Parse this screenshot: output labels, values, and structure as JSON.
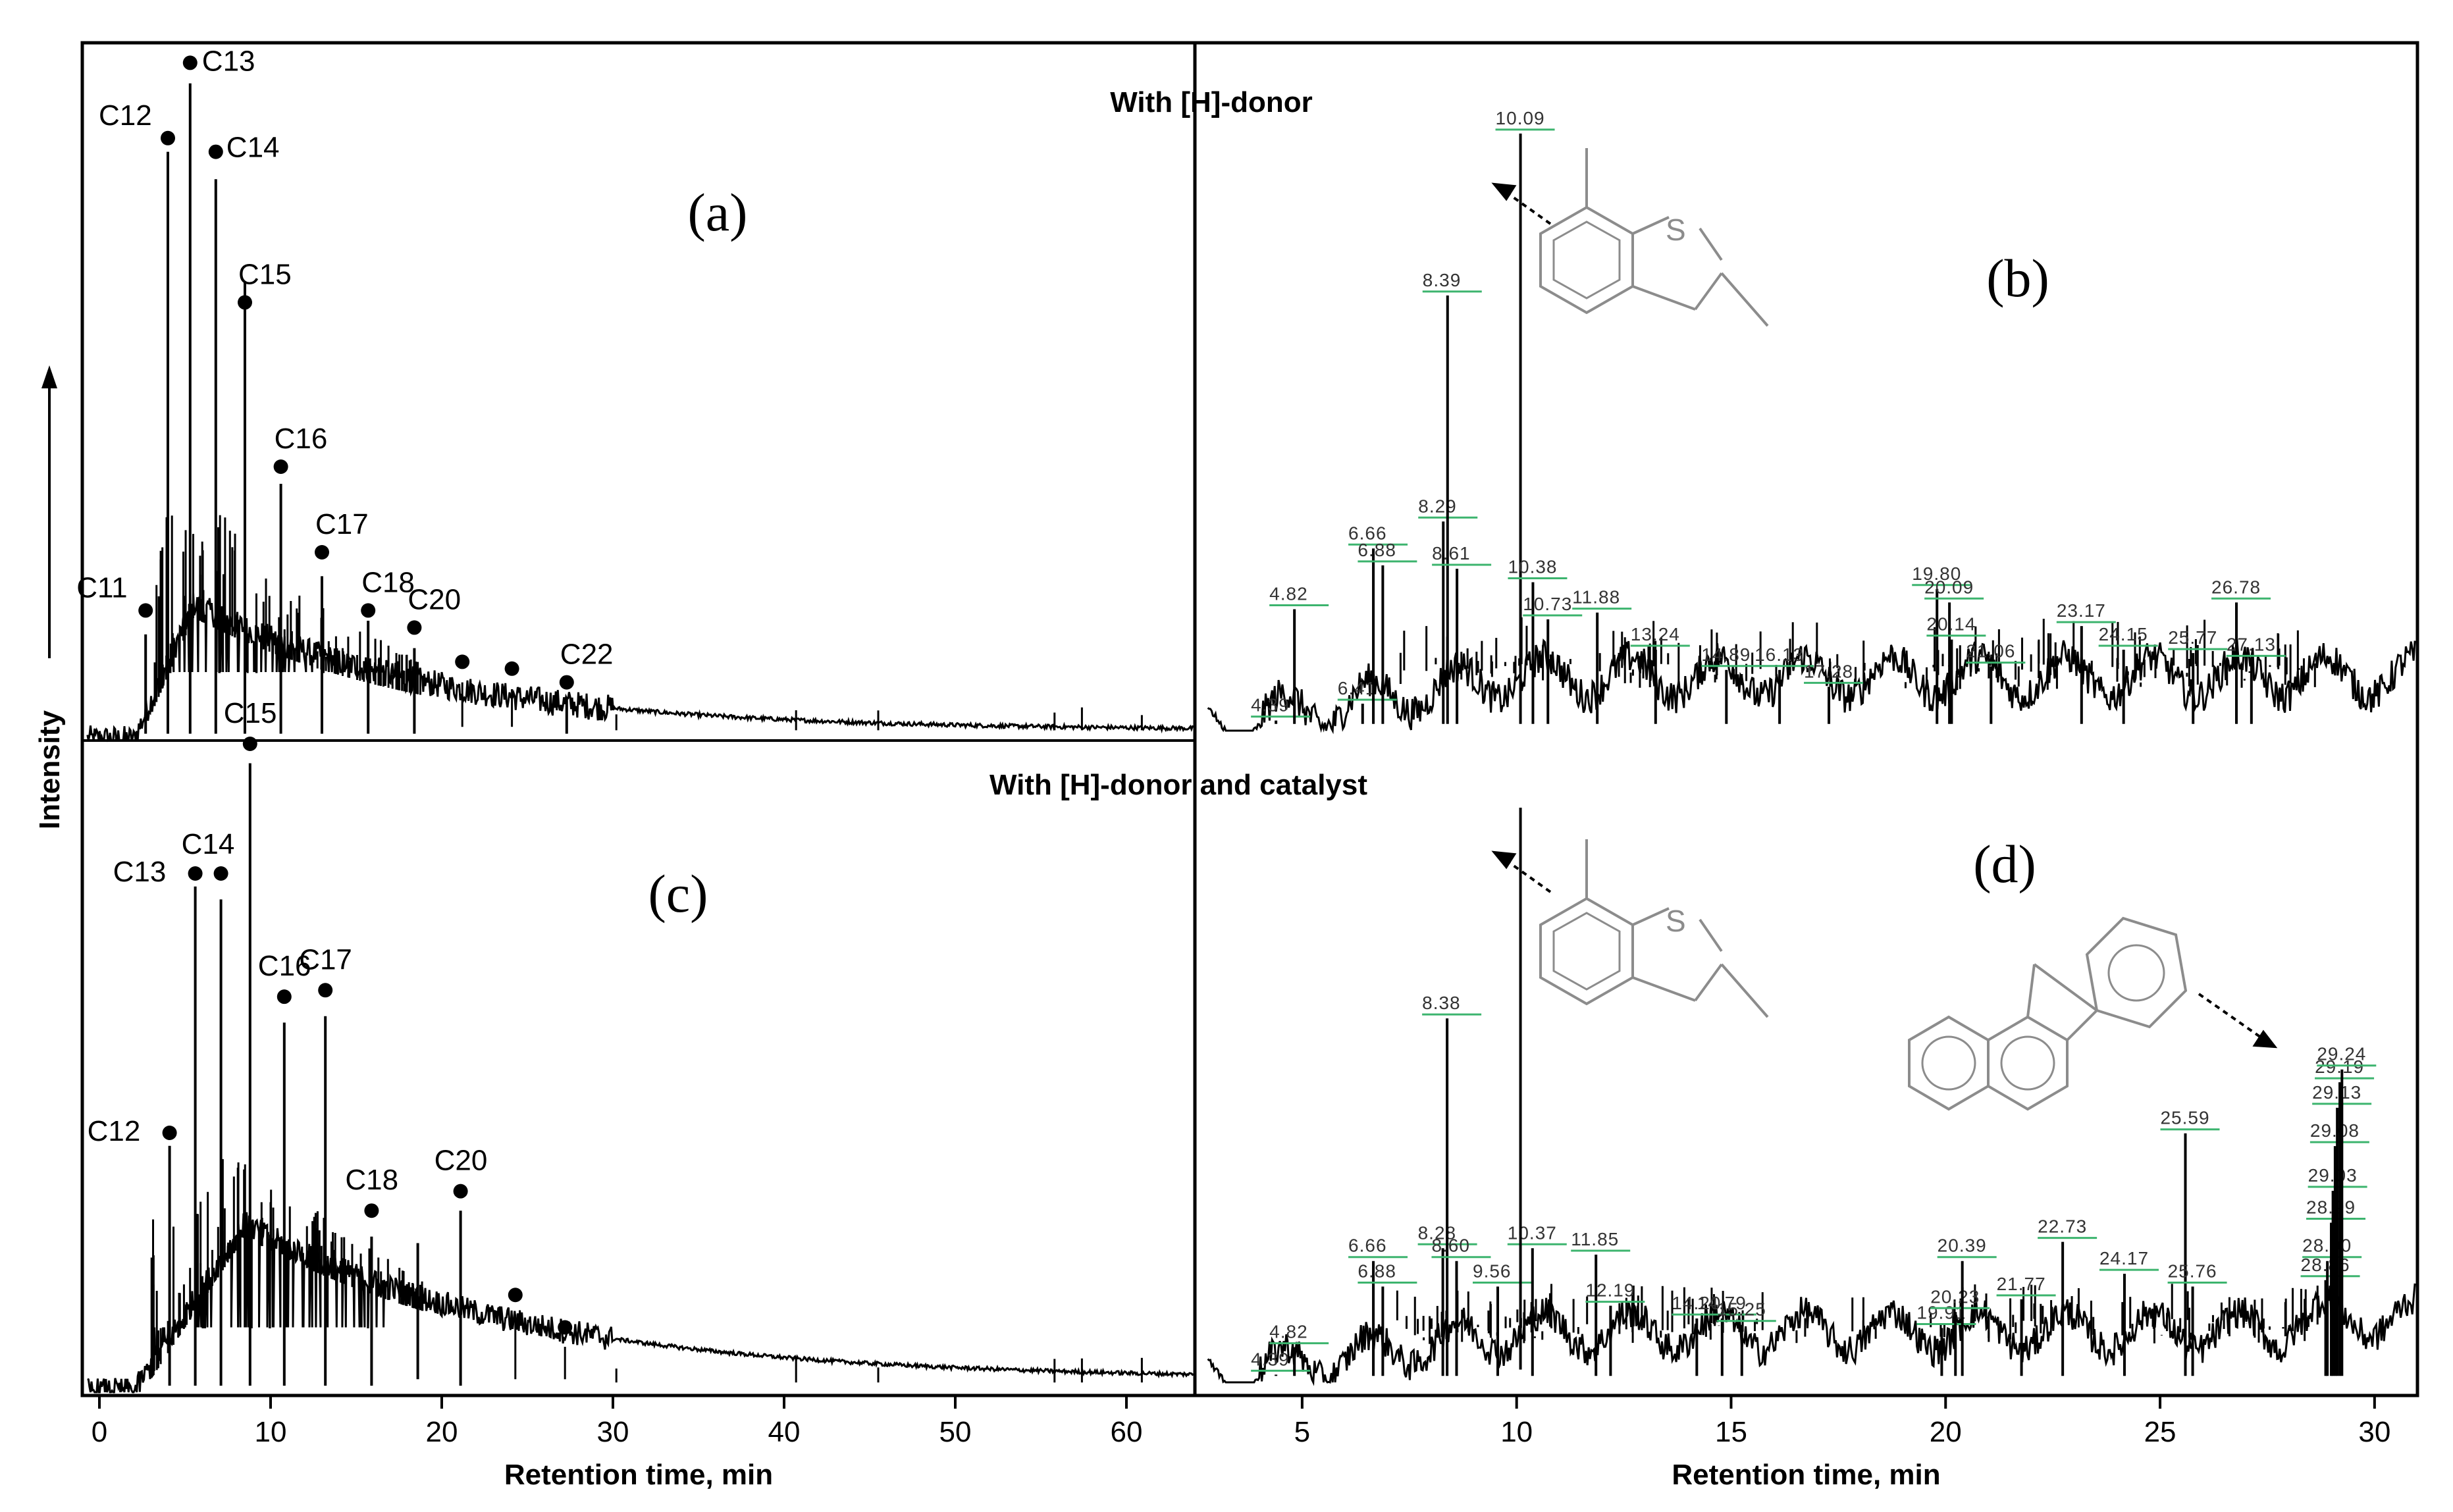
{
  "figure": {
    "condition_top": "With [H]-donor",
    "condition_bottom": "With [H]-donor and catalyst",
    "y_axis_title": "Intensity"
  },
  "chart_data": [
    {
      "id": "a",
      "type": "line",
      "panel_label": "(a)",
      "xlabel": "",
      "ylabel": "Intensity",
      "xlim": [
        0,
        64
      ],
      "x_ticks": [],
      "baseline_hump": {
        "rise_start": 2,
        "peak_x": 5.5,
        "peak_level": 0.2,
        "decay": 14,
        "floor": 0.015
      },
      "peaks": [
        {
          "label": "C11",
          "x": 2.7,
          "h": 0.155,
          "marker": 0.19
        },
        {
          "label": "C12",
          "x": 4.0,
          "h": 0.86,
          "marker": 0.88
        },
        {
          "label": "C13",
          "x": 5.3,
          "h": 0.96,
          "marker": 0.99
        },
        {
          "label": "C14",
          "x": 6.8,
          "h": 0.82,
          "marker": 0.86
        },
        {
          "label": "C15",
          "x": 8.5,
          "h": 0.67,
          "marker": 0.64
        },
        {
          "label": "C16",
          "x": 10.6,
          "h": 0.375,
          "marker": 0.4
        },
        {
          "label": "C17",
          "x": 13.0,
          "h": 0.24,
          "marker": 0.275
        },
        {
          "label": "C18",
          "x": 15.7,
          "h": 0.175,
          "marker": 0.19
        },
        {
          "label": "C20",
          "x": 18.4,
          "h": 0.135,
          "marker": 0.165
        },
        {
          "label": "C22",
          "x": 27.3,
          "h": 0.06,
          "marker": 0.085
        }
      ],
      "unlabeled_markers": [
        {
          "x": 21.2,
          "marker": 0.115
        },
        {
          "x": 24.1,
          "marker": 0.105
        }
      ]
    },
    {
      "id": "b",
      "type": "line",
      "panel_label": "(b)",
      "xlabel": "",
      "ylabel": "",
      "xlim": [
        2.5,
        31
      ],
      "x_ticks": [],
      "peaks": [
        {
          "label": "4.39",
          "x": 4.39,
          "h": 0.015
        },
        {
          "label": "4.82",
          "x": 4.82,
          "h": 0.18
        },
        {
          "label": "6.41",
          "x": 6.41,
          "h": 0.04
        },
        {
          "label": "6.66",
          "x": 6.66,
          "h": 0.27
        },
        {
          "label": "6.88",
          "x": 6.88,
          "h": 0.245
        },
        {
          "label": "8.29",
          "x": 8.29,
          "h": 0.31
        },
        {
          "label": "8.39",
          "x": 8.39,
          "h": 0.645
        },
        {
          "label": "8.61",
          "x": 8.61,
          "h": 0.24
        },
        {
          "label": "10.09",
          "x": 10.09,
          "h": 0.885
        },
        {
          "label": "10.38",
          "x": 10.38,
          "h": 0.22
        },
        {
          "label": "10.73",
          "x": 10.73,
          "h": 0.165
        },
        {
          "label": "11.88",
          "x": 11.88,
          "h": 0.175
        },
        {
          "label": "13.24",
          "x": 13.24,
          "h": 0.12
        },
        {
          "label": "14.89",
          "x": 14.89,
          "h": 0.09
        },
        {
          "label": "16.13",
          "x": 16.13,
          "h": 0.09
        },
        {
          "label": "17.28",
          "x": 17.28,
          "h": 0.065
        },
        {
          "label": "19.80",
          "x": 19.8,
          "h": 0.21
        },
        {
          "label": "20.09",
          "x": 20.09,
          "h": 0.19
        },
        {
          "label": "20.14",
          "x": 20.14,
          "h": 0.135
        },
        {
          "label": "21.06",
          "x": 21.06,
          "h": 0.095
        },
        {
          "label": "23.17",
          "x": 23.17,
          "h": 0.155
        },
        {
          "label": "24.15",
          "x": 24.15,
          "h": 0.12
        },
        {
          "label": "25.77",
          "x": 25.77,
          "h": 0.115
        },
        {
          "label": "26.78",
          "x": 26.78,
          "h": 0.19
        },
        {
          "label": "27.13",
          "x": 27.13,
          "h": 0.105
        }
      ]
    },
    {
      "id": "c",
      "type": "line",
      "panel_label": "(c)",
      "xlabel": "Retention time, min",
      "ylabel": "Intensity",
      "xlim": [
        -1,
        64
      ],
      "x_ticks": [
        0,
        10,
        20,
        30,
        40,
        50,
        60
      ],
      "baseline_hump": {
        "rise_start": 2,
        "peak_x": 8.5,
        "peak_level": 0.26,
        "decay": 16,
        "floor": 0.02
      },
      "peaks": [
        {
          "label": "C12",
          "x": 4.1,
          "h": 0.38,
          "marker": 0.4
        },
        {
          "label": "C13",
          "x": 5.6,
          "h": 0.78,
          "marker": 0.8
        },
        {
          "label": "C14",
          "x": 7.1,
          "h": 0.76,
          "marker": 0.8
        },
        {
          "label": "C15",
          "x": 8.8,
          "h": 0.97,
          "marker": 1.0
        },
        {
          "label": "C16",
          "x": 10.8,
          "h": 0.57,
          "marker": 0.61
        },
        {
          "label": "C17",
          "x": 13.2,
          "h": 0.58,
          "marker": 0.62
        },
        {
          "label": "C18",
          "x": 15.9,
          "h": 0.24,
          "marker": 0.28
        },
        {
          "label": "C20",
          "x": 21.1,
          "h": 0.28,
          "marker": 0.31
        }
      ],
      "extra_peaks": [
        {
          "x": 18.6,
          "h": 0.23
        }
      ],
      "unlabeled_markers": [
        {
          "x": 24.3,
          "marker": 0.15
        },
        {
          "x": 27.2,
          "marker": 0.1
        }
      ]
    },
    {
      "id": "d",
      "type": "line",
      "panel_label": "(d)",
      "xlabel": "Retention time, min",
      "ylabel": "",
      "xlim": [
        2.5,
        31
      ],
      "x_ticks": [
        5,
        10,
        15,
        20,
        25,
        30
      ],
      "peaks": [
        {
          "label": "4.39",
          "x": 4.39,
          "h": 0.012
        },
        {
          "label": "4.82",
          "x": 4.82,
          "h": 0.055
        },
        {
          "label": "6.66",
          "x": 6.66,
          "h": 0.19
        },
        {
          "label": "6.88",
          "x": 6.88,
          "h": 0.15
        },
        {
          "label": "8.28",
          "x": 8.28,
          "h": 0.21
        },
        {
          "label": "8.38",
          "x": 8.38,
          "h": 0.57
        },
        {
          "label": "8.60",
          "x": 8.6,
          "h": 0.19
        },
        {
          "label": "9.56",
          "x": 9.56,
          "h": 0.15
        },
        {
          "label": "10.37",
          "x": 10.37,
          "h": 0.21
        },
        {
          "label": "11.85",
          "x": 11.85,
          "h": 0.2
        },
        {
          "label": "12.19",
          "x": 12.19,
          "h": 0.12
        },
        {
          "label": "14.20",
          "x": 14.2,
          "h": 0.1
        },
        {
          "label": "14.79",
          "x": 14.79,
          "h": 0.1
        },
        {
          "label": "15.25",
          "x": 15.25,
          "h": 0.09
        },
        {
          "label": "19.91",
          "x": 19.91,
          "h": 0.085
        },
        {
          "label": "20.23",
          "x": 20.23,
          "h": 0.11
        },
        {
          "label": "20.39",
          "x": 20.39,
          "h": 0.19
        },
        {
          "label": "21.77",
          "x": 21.77,
          "h": 0.13
        },
        {
          "label": "22.73",
          "x": 22.73,
          "h": 0.22
        },
        {
          "label": "24.17",
          "x": 24.17,
          "h": 0.17
        },
        {
          "label": "25.59",
          "x": 25.59,
          "h": 0.39
        },
        {
          "label": "25.76",
          "x": 25.76,
          "h": 0.15
        },
        {
          "label": "28.86",
          "x": 28.86,
          "h": 0.16
        },
        {
          "label": "28.90",
          "x": 28.9,
          "h": 0.19
        },
        {
          "label": "28.99",
          "x": 28.99,
          "h": 0.25
        },
        {
          "label": "29.03",
          "x": 29.03,
          "h": 0.3
        },
        {
          "label": "29.08",
          "x": 29.08,
          "h": 0.37
        },
        {
          "label": "29.13",
          "x": 29.13,
          "h": 0.43
        },
        {
          "label": "29.19",
          "x": 29.19,
          "h": 0.47
        },
        {
          "label": "29.24",
          "x": 29.24,
          "h": 0.49
        }
      ],
      "tall_peak": {
        "x": 10.09,
        "h": 0.9
      }
    }
  ],
  "colors": {
    "trace": "#000000",
    "label_underline": "#3cb46e",
    "structure": "#8c8c8c",
    "retention_label": "#333333"
  }
}
